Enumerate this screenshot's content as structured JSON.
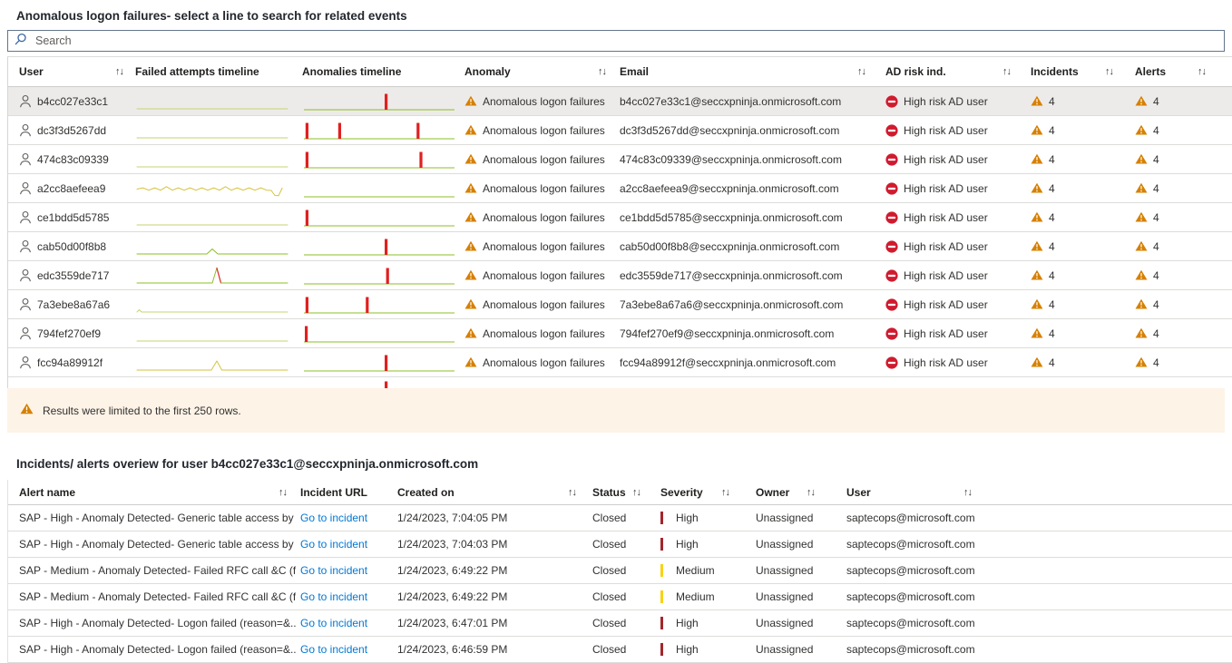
{
  "section1": {
    "title": "Anomalous logon failures- select a line to search for related events",
    "search_placeholder": "Search",
    "limit_notice": "Results were limited to the first 250 rows."
  },
  "section2": {
    "title": "Incidents/ alerts overiew for user b4cc027e33c1@seccxpninja.onmicrosoft.com"
  },
  "icons": {
    "search": "search-icon",
    "person": "person-icon",
    "warning": "warning-triangle-icon",
    "blocked": "blocked-circle-icon",
    "sort_glyph": "↑↓"
  },
  "colors": {
    "link": "#0078d4",
    "warning_orange": "#d68000",
    "risk_red": "#d01b2f",
    "bar_red": "#e02020",
    "spark_flat": "#c7d36f",
    "spark_green": "#8cbf26",
    "spark_yellow": "#d6c33c",
    "severity_high": "#a4262c",
    "severity_medium": "#fcd116",
    "selected_row_bg": "#edebe9",
    "notice_bg": "#fdf3e7",
    "search_icon_blue": "#3a66a8",
    "icon_gray": "#605e5c"
  },
  "users_table": {
    "sort_icon": "↑↓",
    "columns": [
      {
        "label": "User",
        "sortable": true
      },
      {
        "label": "Failed attempts timeline",
        "sortable": false
      },
      {
        "label": "Anomalies timeline",
        "sortable": false
      },
      {
        "label": "Anomaly",
        "sortable": true
      },
      {
        "label": "Email",
        "sortable": true
      },
      {
        "label": "AD risk ind.",
        "sortable": true
      },
      {
        "label": "Incidents",
        "sortable": true
      },
      {
        "label": "Alerts",
        "sortable": true
      }
    ],
    "rows": [
      {
        "user": "b4cc027e33c1",
        "selected": true,
        "failed_pattern": "flat",
        "anomaly_bars": [
          0.55
        ],
        "anomaly": "Anomalous logon failures",
        "email": "b4cc027e33c1@seccxpninja.onmicrosoft.com",
        "ad_risk": "High risk AD user",
        "incidents": "4",
        "alerts": "4"
      },
      {
        "user": "dc3f3d5267dd",
        "selected": false,
        "failed_pattern": "flat",
        "anomaly_bars": [
          0.005,
          0.23,
          0.77
        ],
        "anomaly": "Anomalous logon failures",
        "email": "dc3f3d5267dd@seccxpninja.onmicrosoft.com",
        "ad_risk": "High risk AD user",
        "incidents": "4",
        "alerts": "4"
      },
      {
        "user": "474c83c09339",
        "selected": false,
        "failed_pattern": "flat",
        "anomaly_bars": [
          0.005,
          0.79
        ],
        "anomaly": "Anomalous logon failures",
        "email": "474c83c09339@seccxpninja.onmicrosoft.com",
        "ad_risk": "High risk AD user",
        "incidents": "4",
        "alerts": "4"
      },
      {
        "user": "a2cc8aefeea9",
        "selected": false,
        "failed_pattern": "wavy",
        "anomaly_bars": [],
        "anomaly": "Anomalous logon failures",
        "email": "a2cc8aefeea9@seccxpninja.onmicrosoft.com",
        "ad_risk": "High risk AD user",
        "incidents": "4",
        "alerts": "4"
      },
      {
        "user": "ce1bdd5d5785",
        "selected": false,
        "failed_pattern": "flat",
        "anomaly_bars": [
          0.005
        ],
        "anomaly": "Anomalous logon failures",
        "email": "ce1bdd5d5785@seccxpninja.onmicrosoft.com",
        "ad_risk": "High risk AD user",
        "incidents": "4",
        "alerts": "4"
      },
      {
        "user": "cab50d00f8b8",
        "selected": false,
        "failed_pattern": "bump-center",
        "anomaly_bars": [
          0.55
        ],
        "anomaly": "Anomalous logon failures",
        "email": "cab50d00f8b8@seccxpninja.onmicrosoft.com",
        "ad_risk": "High risk AD user",
        "incidents": "4",
        "alerts": "4"
      },
      {
        "user": "edc3559de717",
        "selected": false,
        "failed_pattern": "spike-red",
        "anomaly_bars": [
          0.56
        ],
        "anomaly": "Anomalous logon failures",
        "email": "edc3559de717@seccxpninja.onmicrosoft.com",
        "ad_risk": "High risk AD user",
        "incidents": "4",
        "alerts": "4"
      },
      {
        "user": "7a3ebe8a67a6",
        "selected": false,
        "failed_pattern": "bump-left",
        "anomaly_bars": [
          0.005,
          0.42
        ],
        "anomaly": "Anomalous logon failures",
        "email": "7a3ebe8a67a6@seccxpninja.onmicrosoft.com",
        "ad_risk": "High risk AD user",
        "incidents": "4",
        "alerts": "4"
      },
      {
        "user": "794fef270ef9",
        "selected": false,
        "failed_pattern": "flat",
        "anomaly_bars": [
          0.0
        ],
        "anomaly": "Anomalous logon failures",
        "email": "794fef270ef9@seccxpninja.onmicrosoft.com",
        "ad_risk": "High risk AD user",
        "incidents": "4",
        "alerts": "4"
      },
      {
        "user": "fcc94a89912f",
        "selected": false,
        "failed_pattern": "spike-yellow",
        "anomaly_bars": [
          0.55
        ],
        "anomaly": "Anomalous logon failures",
        "email": "fcc94a89912f@seccxpninja.onmicrosoft.com",
        "ad_risk": "High risk AD user",
        "incidents": "4",
        "alerts": "4"
      }
    ],
    "clipped_row_bars": [
      0.55
    ]
  },
  "incidents_table": {
    "sort_icon": "↑↓",
    "columns": [
      {
        "label": "Alert name",
        "sortable": true
      },
      {
        "label": "Incident URL",
        "sortable": false
      },
      {
        "label": "Created on",
        "sortable": true
      },
      {
        "label": "Status",
        "sortable": true
      },
      {
        "label": "Severity",
        "sortable": true
      },
      {
        "label": "Owner",
        "sortable": true
      },
      {
        "label": "User",
        "sortable": true
      }
    ],
    "rows": [
      {
        "alert_name": "SAP - High - Anomaly Detected- Generic table access by ...",
        "incident_url": "Go to incident",
        "created_on": "1/24/2023, 7:04:05 PM",
        "status": "Closed",
        "severity": "High",
        "owner": "Unassigned",
        "user": "saptecops@microsoft.com"
      },
      {
        "alert_name": "SAP - High - Anomaly Detected- Generic table access by ...",
        "incident_url": "Go to incident",
        "created_on": "1/24/2023, 7:04:03 PM",
        "status": "Closed",
        "severity": "High",
        "owner": "Unassigned",
        "user": "saptecops@microsoft.com"
      },
      {
        "alert_name": "SAP - Medium - Anomaly Detected- Failed RFC call &C (f...",
        "incident_url": "Go to incident",
        "created_on": "1/24/2023, 6:49:22 PM",
        "status": "Closed",
        "severity": "Medium",
        "owner": "Unassigned",
        "user": "saptecops@microsoft.com"
      },
      {
        "alert_name": "SAP - Medium - Anomaly Detected- Failed RFC call &C (f...",
        "incident_url": "Go to incident",
        "created_on": "1/24/2023, 6:49:22 PM",
        "status": "Closed",
        "severity": "Medium",
        "owner": "Unassigned",
        "user": "saptecops@microsoft.com"
      },
      {
        "alert_name": "SAP - High - Anomaly Detected- Logon failed (reason=&...",
        "incident_url": "Go to incident",
        "created_on": "1/24/2023, 6:47:01 PM",
        "status": "Closed",
        "severity": "High",
        "owner": "Unassigned",
        "user": "saptecops@microsoft.com"
      },
      {
        "alert_name": "SAP - High - Anomaly Detected- Logon failed (reason=&...",
        "incident_url": "Go to incident",
        "created_on": "1/24/2023, 6:46:59 PM",
        "status": "Closed",
        "severity": "High",
        "owner": "Unassigned",
        "user": "saptecops@microsoft.com"
      }
    ]
  }
}
